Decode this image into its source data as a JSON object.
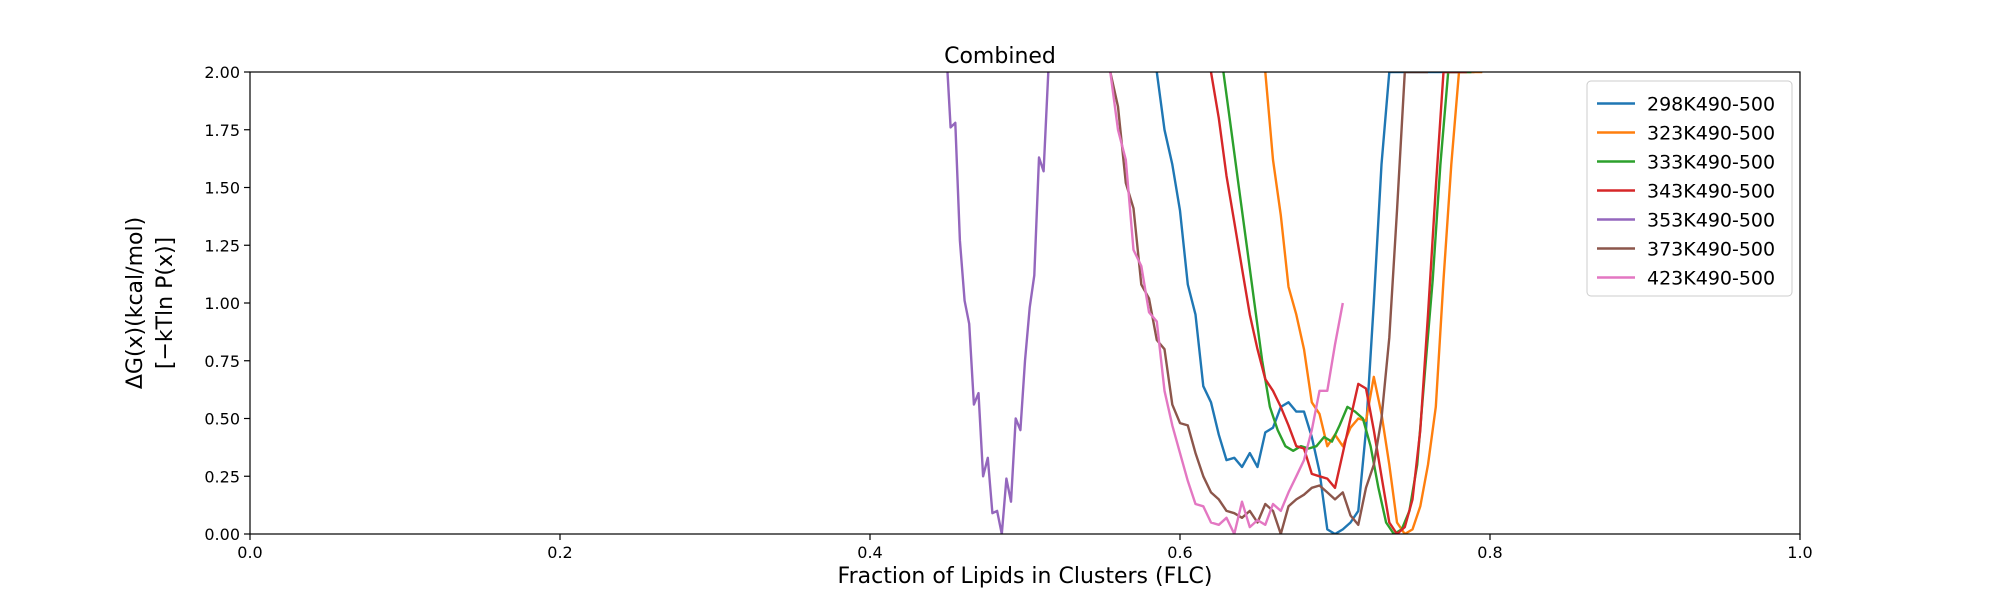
{
  "chart_data": {
    "type": "line",
    "title": "Combined",
    "xlabel": "Fraction of Lipids in Clusters (FLC)",
    "ylabel_line1": "ΔG(x)(kcal/mol)",
    "ylabel_line2": "[−kTln P(x)]",
    "xlim": [
      0.0,
      1.0
    ],
    "ylim": [
      0.0,
      2.0
    ],
    "xticks": [
      "0.0",
      "0.2",
      "0.4",
      "0.6",
      "0.8",
      "1.0"
    ],
    "yticks": [
      "0.00",
      "0.25",
      "0.50",
      "0.75",
      "1.00",
      "1.25",
      "1.50",
      "1.75",
      "2.00"
    ],
    "grid": false,
    "legend_position": "top-right",
    "series": [
      {
        "name": "298K490-500",
        "color": "#1f77b4",
        "x": [
          0.585,
          0.59,
          0.595,
          0.6,
          0.605,
          0.61,
          0.615,
          0.62,
          0.625,
          0.63,
          0.635,
          0.64,
          0.645,
          0.65,
          0.655,
          0.66,
          0.665,
          0.67,
          0.675,
          0.68,
          0.685,
          0.69,
          0.695,
          0.7,
          0.705,
          0.71,
          0.715,
          0.72,
          0.725,
          0.73,
          0.735,
          0.74,
          0.745,
          0.75,
          0.755,
          0.76,
          0.765,
          0.77,
          0.775,
          0.78,
          0.785,
          0.79
        ],
        "y": [
          2.0,
          1.75,
          1.6,
          1.4,
          1.08,
          0.95,
          0.64,
          0.57,
          0.43,
          0.32,
          0.33,
          0.29,
          0.35,
          0.29,
          0.44,
          0.46,
          0.55,
          0.57,
          0.53,
          0.53,
          0.42,
          0.27,
          0.02,
          0.0,
          0.02,
          0.05,
          0.1,
          0.45,
          1.0,
          1.6,
          2.0,
          2.0,
          2.0,
          2.0,
          2.0,
          2.0,
          2.0,
          2.0,
          2.0,
          2.0,
          2.0,
          2.0
        ]
      },
      {
        "name": "323K490-500",
        "color": "#ff7f0e",
        "x": [
          0.655,
          0.66,
          0.665,
          0.67,
          0.675,
          0.68,
          0.685,
          0.69,
          0.695,
          0.7,
          0.705,
          0.71,
          0.715,
          0.72,
          0.725,
          0.73,
          0.735,
          0.74,
          0.745,
          0.75,
          0.755,
          0.76,
          0.765,
          0.77,
          0.775,
          0.78,
          0.785,
          0.79,
          0.795
        ],
        "y": [
          2.0,
          1.62,
          1.38,
          1.07,
          0.95,
          0.8,
          0.57,
          0.52,
          0.38,
          0.43,
          0.38,
          0.46,
          0.5,
          0.49,
          0.68,
          0.52,
          0.3,
          0.05,
          0.0,
          0.02,
          0.12,
          0.3,
          0.55,
          1.1,
          1.6,
          2.0,
          2.0,
          2.0,
          2.0
        ]
      },
      {
        "name": "333K490-500",
        "color": "#2ca02c",
        "x": [
          0.628,
          0.633,
          0.638,
          0.643,
          0.648,
          0.653,
          0.658,
          0.663,
          0.668,
          0.673,
          0.678,
          0.683,
          0.688,
          0.693,
          0.698,
          0.703,
          0.708,
          0.713,
          0.718,
          0.723,
          0.728,
          0.733,
          0.738,
          0.743,
          0.748,
          0.753,
          0.758,
          0.763,
          0.768,
          0.773,
          0.778,
          0.783,
          0.788
        ],
        "y": [
          2.0,
          1.75,
          1.5,
          1.25,
          1.0,
          0.75,
          0.55,
          0.45,
          0.38,
          0.36,
          0.38,
          0.37,
          0.38,
          0.42,
          0.4,
          0.47,
          0.55,
          0.53,
          0.5,
          0.38,
          0.2,
          0.05,
          0.0,
          0.02,
          0.1,
          0.3,
          0.7,
          1.1,
          1.6,
          2.0,
          2.0,
          2.0,
          2.0
        ]
      },
      {
        "name": "343K490-500",
        "color": "#d62728",
        "x": [
          0.62,
          0.625,
          0.63,
          0.635,
          0.64,
          0.645,
          0.65,
          0.655,
          0.66,
          0.665,
          0.67,
          0.675,
          0.68,
          0.685,
          0.69,
          0.695,
          0.7,
          0.705,
          0.71,
          0.715,
          0.72,
          0.725,
          0.73,
          0.735,
          0.74,
          0.745,
          0.75,
          0.755,
          0.76,
          0.765,
          0.77,
          0.775,
          0.78,
          0.785
        ],
        "y": [
          2.0,
          1.8,
          1.55,
          1.35,
          1.15,
          0.95,
          0.8,
          0.67,
          0.62,
          0.55,
          0.47,
          0.38,
          0.37,
          0.26,
          0.25,
          0.24,
          0.2,
          0.35,
          0.5,
          0.65,
          0.63,
          0.45,
          0.25,
          0.05,
          0.0,
          0.03,
          0.15,
          0.45,
          0.95,
          1.5,
          2.0,
          2.0,
          2.0,
          2.0
        ]
      },
      {
        "name": "353K490-500",
        "color": "#9467bd",
        "x": [
          0.45,
          0.452,
          0.455,
          0.458,
          0.461,
          0.464,
          0.467,
          0.47,
          0.473,
          0.476,
          0.479,
          0.482,
          0.485,
          0.488,
          0.491,
          0.494,
          0.497,
          0.5,
          0.503,
          0.506,
          0.509,
          0.512,
          0.515
        ],
        "y": [
          2.0,
          1.76,
          1.78,
          1.27,
          1.01,
          0.91,
          0.56,
          0.61,
          0.25,
          0.33,
          0.09,
          0.1,
          0.0,
          0.24,
          0.14,
          0.5,
          0.45,
          0.75,
          0.98,
          1.12,
          1.63,
          1.57,
          2.0
        ]
      },
      {
        "name": "373K490-500",
        "color": "#8c564b",
        "x": [
          0.555,
          0.56,
          0.565,
          0.57,
          0.575,
          0.58,
          0.585,
          0.59,
          0.595,
          0.6,
          0.605,
          0.61,
          0.615,
          0.62,
          0.625,
          0.63,
          0.635,
          0.64,
          0.645,
          0.65,
          0.655,
          0.66,
          0.665,
          0.67,
          0.675,
          0.68,
          0.685,
          0.69,
          0.695,
          0.7,
          0.705,
          0.71,
          0.715,
          0.72,
          0.725,
          0.73,
          0.735,
          0.74,
          0.745,
          0.75,
          0.755,
          0.76
        ],
        "y": [
          2.0,
          1.85,
          1.52,
          1.41,
          1.08,
          1.02,
          0.84,
          0.8,
          0.56,
          0.48,
          0.47,
          0.35,
          0.25,
          0.18,
          0.15,
          0.1,
          0.09,
          0.07,
          0.1,
          0.05,
          0.13,
          0.1,
          0.0,
          0.12,
          0.15,
          0.17,
          0.2,
          0.21,
          0.18,
          0.15,
          0.18,
          0.08,
          0.04,
          0.2,
          0.3,
          0.5,
          0.85,
          1.4,
          2.0,
          2.0,
          2.0,
          2.0
        ]
      },
      {
        "name": "423K490-500",
        "color": "#e377c2",
        "x": [
          0.555,
          0.56,
          0.565,
          0.57,
          0.575,
          0.58,
          0.585,
          0.59,
          0.595,
          0.6,
          0.605,
          0.61,
          0.615,
          0.62,
          0.625,
          0.63,
          0.635,
          0.64,
          0.645,
          0.65,
          0.655,
          0.66,
          0.665,
          0.67,
          0.675,
          0.68,
          0.685,
          0.69,
          0.695,
          0.7,
          0.705
        ],
        "y": [
          2.0,
          1.75,
          1.62,
          1.23,
          1.16,
          0.96,
          0.92,
          0.62,
          0.47,
          0.35,
          0.23,
          0.13,
          0.12,
          0.05,
          0.04,
          0.07,
          0.0,
          0.14,
          0.03,
          0.06,
          0.04,
          0.13,
          0.1,
          0.18,
          0.25,
          0.32,
          0.45,
          0.62,
          0.62,
          0.82,
          1.0
        ]
      }
    ]
  }
}
